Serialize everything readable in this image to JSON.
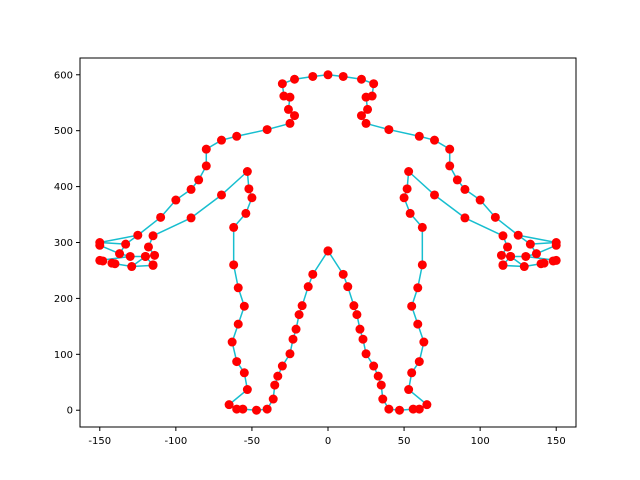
{
  "chart_data": {
    "type": "scatter",
    "title": "",
    "xlabel": "",
    "ylabel": "",
    "xlim": [
      -163,
      163
    ],
    "ylim": [
      -30,
      630
    ],
    "grid": false,
    "xticks": [
      -150,
      -100,
      -50,
      0,
      50,
      100,
      150
    ],
    "yticks": [
      0,
      100,
      200,
      300,
      400,
      500,
      600
    ],
    "series": [
      {
        "line_color": "#17becf",
        "marker_color": "#ff0000",
        "points": [
          [
            0,
            285
          ],
          [
            -10,
            243
          ],
          [
            -13,
            221
          ],
          [
            -17,
            187
          ],
          [
            -19,
            171
          ],
          [
            -21,
            145
          ],
          [
            -23,
            127
          ],
          [
            -25,
            101
          ],
          [
            -30,
            79
          ],
          [
            -33,
            61
          ],
          [
            -35,
            45
          ],
          [
            -36,
            20
          ],
          [
            -40,
            2
          ],
          [
            -47,
            0
          ],
          [
            -56,
            2
          ],
          [
            -60,
            2
          ],
          [
            -65,
            10
          ],
          [
            -53,
            37
          ],
          [
            -55,
            67
          ],
          [
            -60,
            87
          ],
          [
            -63,
            122
          ],
          [
            -59,
            154
          ],
          [
            -55,
            186
          ],
          [
            -59,
            219
          ],
          [
            -62,
            260
          ],
          [
            -62,
            327
          ],
          [
            -54,
            352
          ],
          [
            -50,
            380
          ],
          [
            -52,
            396
          ],
          [
            -53,
            427
          ],
          [
            -70,
            385
          ],
          [
            -90,
            344
          ],
          [
            -115,
            312
          ],
          [
            -118,
            292
          ],
          [
            -114,
            277
          ],
          [
            -120,
            275
          ],
          [
            -115,
            260
          ],
          [
            -115,
            259
          ],
          [
            -129,
            257
          ],
          [
            -120,
            275
          ],
          [
            -130,
            275
          ],
          [
            -137,
            280
          ],
          [
            -133,
            297
          ],
          [
            -125,
            313
          ],
          [
            -110,
            345
          ],
          [
            -100,
            376
          ],
          [
            -90,
            395
          ],
          [
            -85,
            412
          ],
          [
            -80,
            437
          ],
          [
            -80,
            467
          ],
          [
            -70,
            483
          ],
          [
            -60,
            490
          ],
          [
            -40,
            502
          ],
          [
            -25,
            513
          ],
          [
            -22,
            527
          ],
          [
            -26,
            538
          ],
          [
            -25,
            560
          ],
          [
            -29,
            562
          ],
          [
            -30,
            584
          ],
          [
            -22,
            592
          ],
          [
            -10,
            597
          ],
          [
            0,
            600
          ],
          [
            10,
            597
          ],
          [
            22,
            592
          ],
          [
            30,
            584
          ],
          [
            29,
            562
          ],
          [
            25,
            560
          ],
          [
            26,
            538
          ],
          [
            22,
            527
          ],
          [
            25,
            513
          ],
          [
            40,
            502
          ],
          [
            60,
            490
          ],
          [
            70,
            483
          ],
          [
            80,
            467
          ],
          [
            80,
            437
          ],
          [
            85,
            412
          ],
          [
            90,
            395
          ],
          [
            100,
            376
          ],
          [
            110,
            345
          ],
          [
            125,
            313
          ],
          [
            133,
            297
          ],
          [
            137,
            280
          ],
          [
            130,
            275
          ],
          [
            120,
            275
          ],
          [
            129,
            257
          ],
          [
            115,
            259
          ],
          [
            115,
            260
          ],
          [
            120,
            275
          ],
          [
            114,
            277
          ],
          [
            118,
            292
          ],
          [
            115,
            312
          ],
          [
            90,
            344
          ],
          [
            70,
            385
          ],
          [
            53,
            427
          ],
          [
            52,
            396
          ],
          [
            50,
            380
          ],
          [
            54,
            352
          ],
          [
            62,
            327
          ],
          [
            62,
            260
          ],
          [
            59,
            219
          ],
          [
            55,
            186
          ],
          [
            59,
            154
          ],
          [
            63,
            122
          ],
          [
            60,
            87
          ],
          [
            55,
            67
          ],
          [
            53,
            37
          ],
          [
            65,
            10
          ],
          [
            60,
            2
          ],
          [
            56,
            2
          ],
          [
            47,
            0
          ],
          [
            40,
            2
          ],
          [
            36,
            20
          ],
          [
            35,
            45
          ],
          [
            33,
            61
          ],
          [
            30,
            79
          ],
          [
            25,
            101
          ],
          [
            23,
            127
          ],
          [
            21,
            145
          ],
          [
            19,
            171
          ],
          [
            17,
            187
          ],
          [
            13,
            221
          ],
          [
            10,
            243
          ],
          [
            0,
            285
          ]
        ],
        "extra_markers": [
          [
            -150,
            295
          ],
          [
            -150,
            300
          ],
          [
            -150,
            268
          ],
          [
            -148,
            267
          ],
          [
            -142,
            263
          ],
          [
            -140,
            262
          ],
          [
            150,
            295
          ],
          [
            150,
            300
          ],
          [
            150,
            268
          ],
          [
            148,
            267
          ],
          [
            142,
            263
          ],
          [
            140,
            262
          ]
        ],
        "extra_lines": [
          [
            [
              -150,
              300
            ],
            [
              -125,
              313
            ]
          ],
          [
            [
              -150,
              300
            ],
            [
              -133,
              297
            ]
          ],
          [
            [
              -150,
              295
            ],
            [
              -137,
              280
            ]
          ],
          [
            [
              -150,
              268
            ],
            [
              -130,
              275
            ]
          ],
          [
            [
              -140,
              262
            ],
            [
              -129,
              257
            ]
          ],
          [
            [
              150,
              300
            ],
            [
              125,
              313
            ]
          ],
          [
            [
              150,
              300
            ],
            [
              133,
              297
            ]
          ],
          [
            [
              150,
              295
            ],
            [
              137,
              280
            ]
          ],
          [
            [
              150,
              268
            ],
            [
              130,
              275
            ]
          ],
          [
            [
              140,
              262
            ],
            [
              129,
              257
            ]
          ]
        ]
      }
    ]
  }
}
